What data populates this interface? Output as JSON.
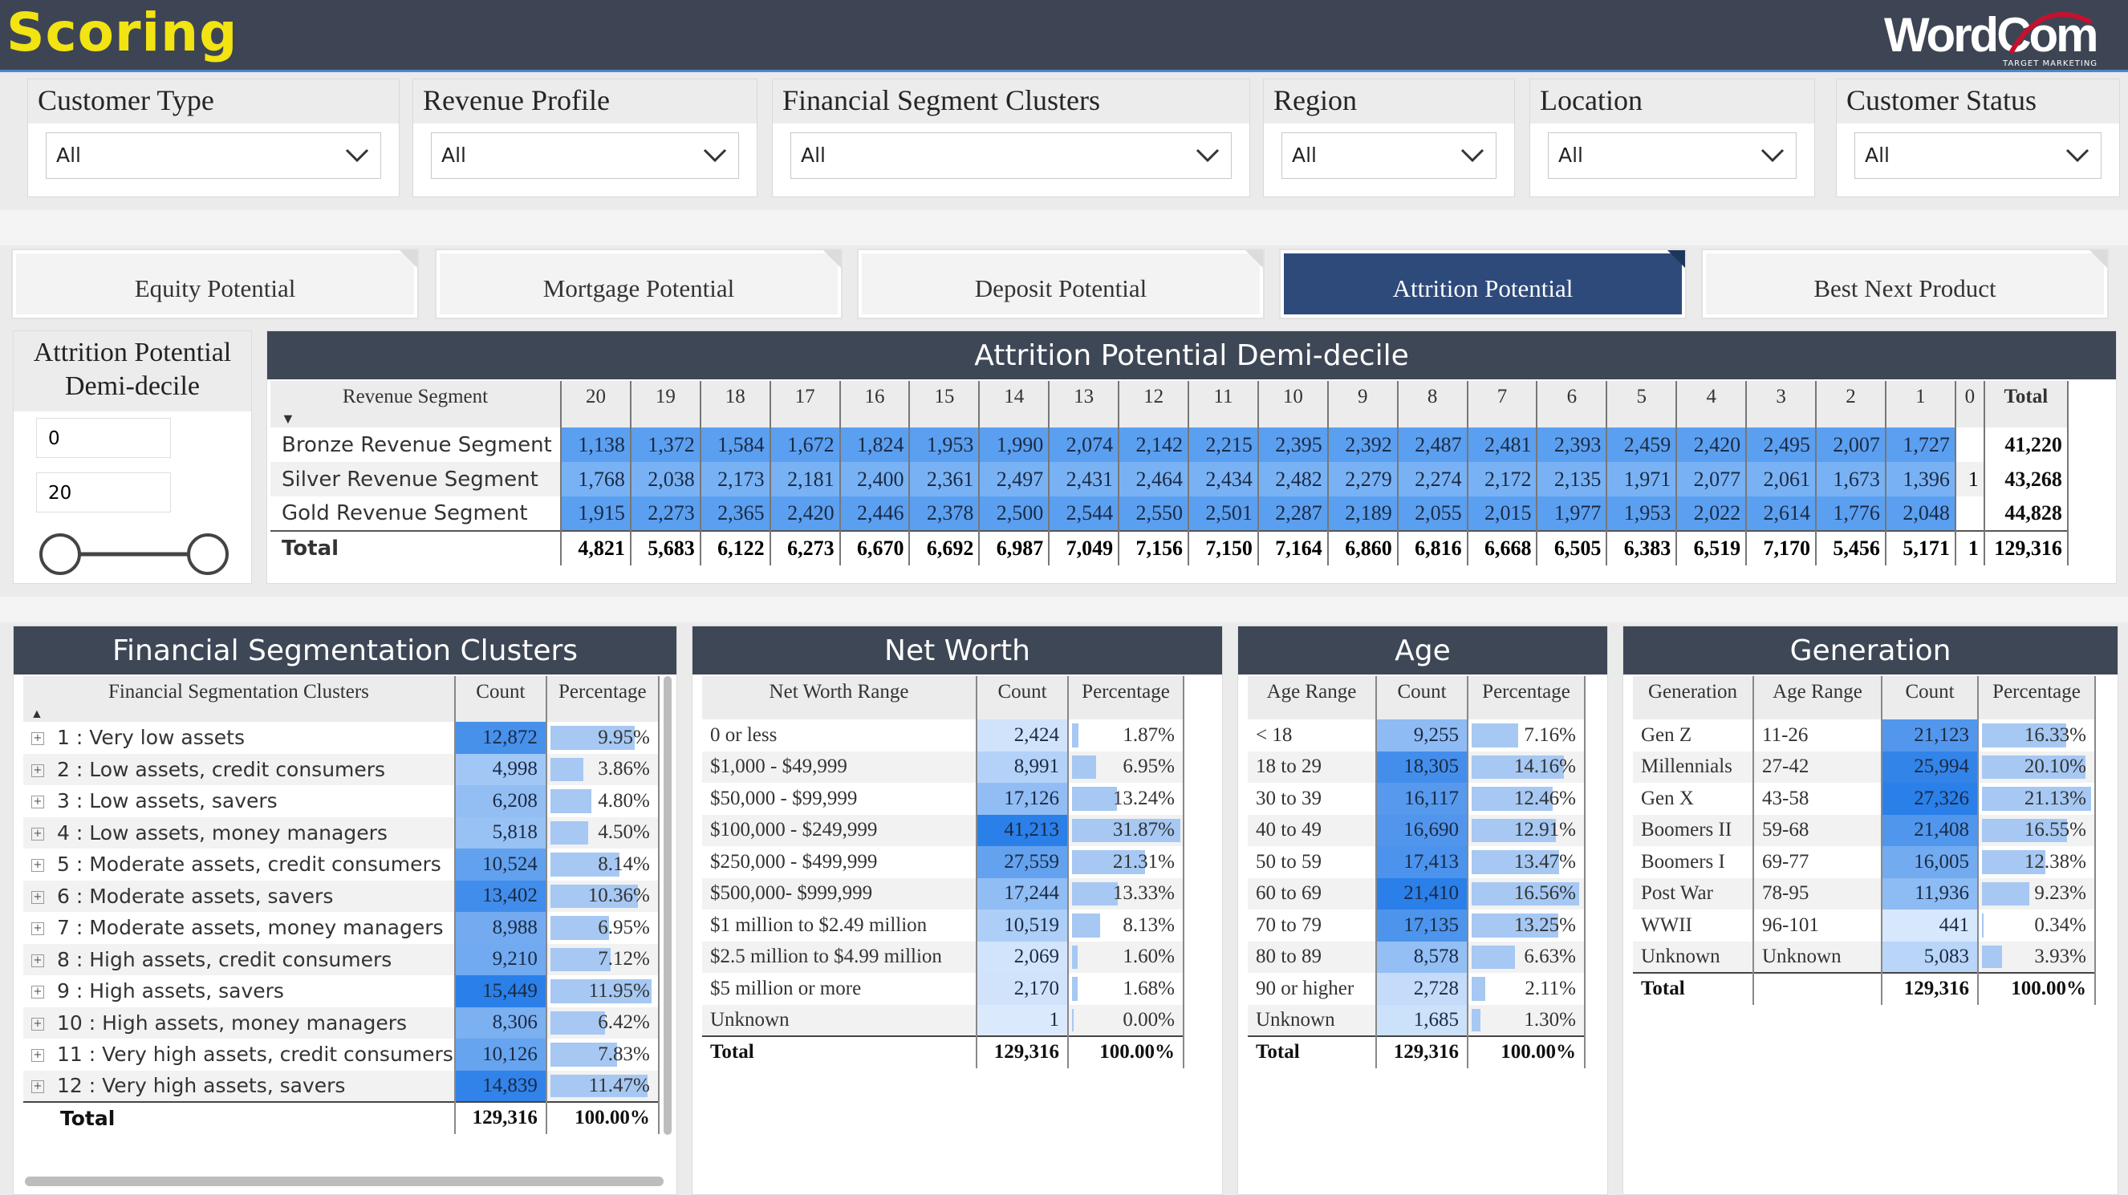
{
  "header": {
    "title": "Scoring",
    "logo_text": "WordCom",
    "logo_sub": "TARGET MARKETING"
  },
  "slicers": [
    {
      "label": "Customer Type",
      "value": "All"
    },
    {
      "label": "Revenue Profile",
      "value": "All"
    },
    {
      "label": "Financial Segment Clusters",
      "value": "All"
    },
    {
      "label": "Region",
      "value": "All"
    },
    {
      "label": "Location",
      "value": "All"
    },
    {
      "label": "Customer Status",
      "value": "All"
    }
  ],
  "tabs": [
    {
      "label": "Equity Potential",
      "active": false
    },
    {
      "label": "Mortgage Potential",
      "active": false
    },
    {
      "label": "Deposit Potential",
      "active": false
    },
    {
      "label": "Attrition Potential",
      "active": true
    },
    {
      "label": "Best Next Product",
      "active": false
    }
  ],
  "range_slicer": {
    "title_line1": "Attrition Potential",
    "title_line2": "Demi-decile",
    "min": "0",
    "max": "20"
  },
  "matrix": {
    "title": "Attrition Potential Demi-decile",
    "row_header": "Revenue Segment",
    "columns": [
      "20",
      "19",
      "18",
      "17",
      "16",
      "15",
      "14",
      "13",
      "12",
      "11",
      "10",
      "9",
      "8",
      "7",
      "6",
      "5",
      "4",
      "3",
      "2",
      "1",
      "0",
      "Total"
    ],
    "rows": [
      {
        "label": "Bronze Revenue Segment",
        "values": [
          "1,138",
          "1,372",
          "1,584",
          "1,672",
          "1,824",
          "1,953",
          "1,990",
          "2,074",
          "2,142",
          "2,215",
          "2,395",
          "2,392",
          "2,487",
          "2,481",
          "2,393",
          "2,459",
          "2,420",
          "2,495",
          "2,007",
          "1,727",
          "",
          "41,220"
        ]
      },
      {
        "label": "Silver Revenue Segment",
        "values": [
          "1,768",
          "2,038",
          "2,173",
          "2,181",
          "2,400",
          "2,361",
          "2,497",
          "2,431",
          "2,464",
          "2,434",
          "2,482",
          "2,279",
          "2,274",
          "2,172",
          "2,135",
          "1,971",
          "2,077",
          "2,061",
          "1,673",
          "1,396",
          "1",
          "43,268"
        ]
      },
      {
        "label": "Gold Revenue Segment",
        "values": [
          "1,915",
          "2,273",
          "2,365",
          "2,420",
          "2,446",
          "2,378",
          "2,500",
          "2,544",
          "2,550",
          "2,501",
          "2,287",
          "2,189",
          "2,055",
          "2,015",
          "1,977",
          "1,953",
          "2,022",
          "2,614",
          "1,776",
          "2,048",
          "",
          "44,828"
        ]
      }
    ],
    "total": {
      "label": "Total",
      "values": [
        "4,821",
        "5,683",
        "6,122",
        "6,273",
        "6,670",
        "6,692",
        "6,987",
        "7,049",
        "7,156",
        "7,150",
        "7,164",
        "6,860",
        "6,816",
        "6,668",
        "6,505",
        "6,383",
        "6,519",
        "7,170",
        "5,456",
        "5,171",
        "1",
        "129,316"
      ]
    }
  },
  "fsc": {
    "title": "Financial Segmentation Clusters",
    "headers": [
      "Financial Segmentation Clusters",
      "Count",
      "Percentage"
    ],
    "rows": [
      {
        "label": "1 : Very low assets",
        "count": "12,872",
        "pct": "9.95%",
        "pct_value": 9.95
      },
      {
        "label": "2 : Low assets, credit consumers",
        "count": "4,998",
        "pct": "3.86%",
        "pct_value": 3.86
      },
      {
        "label": "3 : Low assets, savers",
        "count": "6,208",
        "pct": "4.80%",
        "pct_value": 4.8
      },
      {
        "label": "4 : Low assets, money managers",
        "count": "5,818",
        "pct": "4.50%",
        "pct_value": 4.5
      },
      {
        "label": "5 : Moderate assets, credit consumers",
        "count": "10,524",
        "pct": "8.14%",
        "pct_value": 8.14
      },
      {
        "label": "6 : Moderate assets, savers",
        "count": "13,402",
        "pct": "10.36%",
        "pct_value": 10.36
      },
      {
        "label": "7 : Moderate assets, money managers",
        "count": "8,988",
        "pct": "6.95%",
        "pct_value": 6.95
      },
      {
        "label": "8 : High assets, credit consumers",
        "count": "9,210",
        "pct": "7.12%",
        "pct_value": 7.12
      },
      {
        "label": "9 : High assets, savers",
        "count": "15,449",
        "pct": "11.95%",
        "pct_value": 11.95
      },
      {
        "label": "10 : High assets, money managers",
        "count": "8,306",
        "pct": "6.42%",
        "pct_value": 6.42
      },
      {
        "label": "11 : Very high assets, credit consumers",
        "count": "10,126",
        "pct": "7.83%",
        "pct_value": 7.83
      },
      {
        "label": "12 : Very high assets, savers",
        "count": "14,839",
        "pct": "11.47%",
        "pct_value": 11.47
      }
    ],
    "total": {
      "label": "Total",
      "count": "129,316",
      "pct": "100.00%"
    }
  },
  "networth": {
    "title": "Net Worth",
    "headers": [
      "Net Worth Range",
      "Count",
      "Percentage"
    ],
    "rows": [
      {
        "label": "0 or less",
        "count": "2,424",
        "pct": "1.87%",
        "pct_value": 1.87
      },
      {
        "label": "$1,000 - $49,999",
        "count": "8,991",
        "pct": "6.95%",
        "pct_value": 6.95
      },
      {
        "label": "$50,000 - $99,999",
        "count": "17,126",
        "pct": "13.24%",
        "pct_value": 13.24
      },
      {
        "label": "$100,000 - $249,999",
        "count": "41,213",
        "pct": "31.87%",
        "pct_value": 31.87
      },
      {
        "label": "$250,000 - $499,999",
        "count": "27,559",
        "pct": "21.31%",
        "pct_value": 21.31
      },
      {
        "label": "$500,000- $999,999",
        "count": "17,244",
        "pct": "13.33%",
        "pct_value": 13.33
      },
      {
        "label": "$1 million to $2.49 million",
        "count": "10,519",
        "pct": "8.13%",
        "pct_value": 8.13
      },
      {
        "label": "$2.5 million to $4.99 million",
        "count": "2,069",
        "pct": "1.60%",
        "pct_value": 1.6
      },
      {
        "label": "$5 million or more",
        "count": "2,170",
        "pct": "1.68%",
        "pct_value": 1.68
      },
      {
        "label": "Unknown",
        "count": "1",
        "pct": "0.00%",
        "pct_value": 0
      }
    ],
    "total": {
      "label": "Total",
      "count": "129,316",
      "pct": "100.00%"
    }
  },
  "age": {
    "title": "Age",
    "headers": [
      "Age Range",
      "Count",
      "Percentage"
    ],
    "rows": [
      {
        "label": "< 18",
        "count": "9,255",
        "pct": "7.16%",
        "pct_value": 7.16
      },
      {
        "label": "18 to 29",
        "count": "18,305",
        "pct": "14.16%",
        "pct_value": 14.16
      },
      {
        "label": "30 to 39",
        "count": "16,117",
        "pct": "12.46%",
        "pct_value": 12.46
      },
      {
        "label": "40 to 49",
        "count": "16,690",
        "pct": "12.91%",
        "pct_value": 12.91
      },
      {
        "label": "50 to 59",
        "count": "17,413",
        "pct": "13.47%",
        "pct_value": 13.47
      },
      {
        "label": "60 to 69",
        "count": "21,410",
        "pct": "16.56%",
        "pct_value": 16.56
      },
      {
        "label": "70 to 79",
        "count": "17,135",
        "pct": "13.25%",
        "pct_value": 13.25
      },
      {
        "label": "80 to 89",
        "count": "8,578",
        "pct": "6.63%",
        "pct_value": 6.63
      },
      {
        "label": "90 or higher",
        "count": "2,728",
        "pct": "2.11%",
        "pct_value": 2.11
      },
      {
        "label": "Unknown",
        "count": "1,685",
        "pct": "1.30%",
        "pct_value": 1.3
      }
    ],
    "total": {
      "label": "Total",
      "count": "129,316",
      "pct": "100.00%"
    }
  },
  "generation": {
    "title": "Generation",
    "headers": [
      "Generation",
      "Age Range",
      "Count",
      "Percentage"
    ],
    "rows": [
      {
        "label": "Gen Z",
        "range": "11-26",
        "count": "21,123",
        "pct": "16.33%",
        "pct_value": 16.33
      },
      {
        "label": "Millennials",
        "range": "27-42",
        "count": "25,994",
        "pct": "20.10%",
        "pct_value": 20.1
      },
      {
        "label": "Gen X",
        "range": "43-58",
        "count": "27,326",
        "pct": "21.13%",
        "pct_value": 21.13
      },
      {
        "label": "Boomers II",
        "range": "59-68",
        "count": "21,408",
        "pct": "16.55%",
        "pct_value": 16.55
      },
      {
        "label": "Boomers I",
        "range": "69-77",
        "count": "16,005",
        "pct": "12.38%",
        "pct_value": 12.38
      },
      {
        "label": "Post War",
        "range": "78-95",
        "count": "11,936",
        "pct": "9.23%",
        "pct_value": 9.23
      },
      {
        "label": "WWII",
        "range": "96-101",
        "count": "441",
        "pct": "0.34%",
        "pct_value": 0.34
      },
      {
        "label": "Unknown",
        "range": "Unknown",
        "count": "5,083",
        "pct": "3.93%",
        "pct_value": 3.93
      }
    ],
    "total": {
      "label": "Total",
      "range": "",
      "count": "129,316",
      "pct": "100.00%"
    }
  },
  "colors": {
    "header_bg": "#3d4554",
    "title_yellow": "#f2e312",
    "accent_blue": "#2e4a7b",
    "cell_blue": "#5b9ff0",
    "bar_light": "#a6c8f3"
  }
}
